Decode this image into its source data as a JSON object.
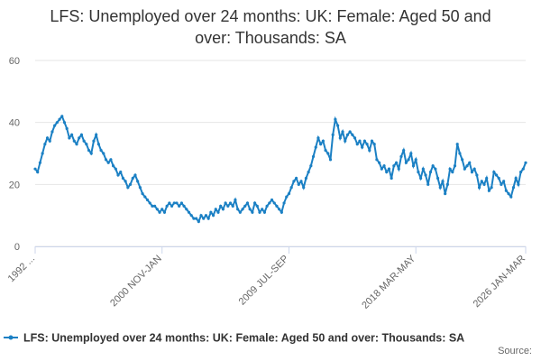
{
  "chart_data": {
    "type": "line",
    "title": "LFS: Unemployed over 24 months: UK: Female: Aged 50 and over: Thousands: SA",
    "source_label": "Source:",
    "categories": [
      "1992 ...",
      null,
      null,
      null,
      null,
      null,
      null,
      null,
      null,
      null,
      null,
      null,
      null,
      null,
      null,
      null,
      null,
      null,
      null,
      null,
      null,
      null,
      null,
      null,
      null,
      null,
      null,
      null,
      null,
      null,
      null,
      null,
      null,
      null,
      null,
      null,
      null,
      null,
      null,
      null,
      null,
      null,
      null,
      null,
      null,
      null,
      null,
      null,
      null,
      null,
      null,
      null,
      "2000 NOV-JAN",
      null,
      null,
      null,
      null,
      null,
      null,
      null,
      null,
      null,
      null,
      null,
      null,
      null,
      null,
      null,
      null,
      null,
      null,
      null,
      null,
      null,
      null,
      null,
      null,
      null,
      null,
      null,
      null,
      null,
      null,
      null,
      null,
      null,
      null,
      null,
      null,
      null,
      null,
      null,
      null,
      null,
      null,
      null,
      null,
      null,
      null,
      null,
      null,
      null,
      null,
      null,
      "2009 JUL-SEP",
      null,
      null,
      null,
      null,
      null,
      null,
      null,
      null,
      null,
      null,
      null,
      null,
      null,
      null,
      null,
      null,
      null,
      null,
      null,
      null,
      null,
      null,
      null,
      null,
      null,
      null,
      null,
      null,
      null,
      null,
      null,
      null,
      null,
      null,
      null,
      null,
      null,
      null,
      null,
      null,
      null,
      null,
      null,
      null,
      null,
      null,
      null,
      null,
      null,
      null,
      null,
      "2018 MAR-MAY",
      null,
      null,
      null,
      null,
      null,
      null,
      null,
      null,
      null,
      null,
      null,
      null,
      null,
      null,
      null,
      null,
      null,
      null,
      null,
      null,
      null,
      null,
      null,
      null,
      null,
      null,
      null,
      null,
      null,
      null,
      null,
      null,
      null,
      null,
      null,
      null,
      null,
      null,
      null,
      null,
      null,
      null,
      null,
      null,
      "2026 JAN-MAR"
    ],
    "series": [
      {
        "name": "LFS: Unemployed over 24 months: UK: Female: Aged 50 and over: Thousands: SA",
        "color": "#1b80c4",
        "values": [
          25,
          24,
          27,
          30,
          33,
          35,
          34,
          37,
          39,
          40,
          41,
          42,
          40,
          38,
          35,
          36,
          34,
          33,
          35,
          36,
          34,
          33,
          31,
          30,
          34,
          36,
          33,
          31,
          30,
          28,
          27,
          28,
          26,
          25,
          23,
          24,
          22,
          21,
          19,
          20,
          22,
          23,
          21,
          19,
          17,
          16,
          15,
          14,
          13,
          13,
          12,
          11,
          12,
          11,
          13,
          14,
          13,
          14,
          14,
          13,
          14,
          13,
          12,
          11,
          10,
          9,
          9,
          8,
          10,
          9,
          10,
          9,
          11,
          10,
          12,
          11,
          13,
          12,
          14,
          13,
          14,
          13,
          15,
          12,
          11,
          12,
          13,
          14,
          12,
          11,
          14,
          13,
          11,
          12,
          11,
          13,
          14,
          15,
          14,
          13,
          12,
          11,
          14,
          16,
          17,
          19,
          21,
          22,
          20,
          21,
          19,
          22,
          24,
          26,
          29,
          32,
          35,
          33,
          34,
          31,
          30,
          28,
          36,
          41,
          39,
          35,
          37,
          34,
          36,
          37,
          36,
          35,
          33,
          34,
          32,
          34,
          33,
          31,
          34,
          33,
          28,
          27,
          25,
          26,
          24,
          25,
          22,
          26,
          27,
          25,
          29,
          31,
          27,
          28,
          30,
          26,
          28,
          24,
          22,
          25,
          23,
          20,
          24,
          26,
          25,
          22,
          19,
          21,
          17,
          20,
          25,
          24,
          26,
          33,
          30,
          28,
          25,
          26,
          27,
          24,
          25,
          23,
          19,
          21,
          20,
          22,
          18,
          19,
          24,
          23,
          22,
          20,
          21,
          18,
          17,
          16,
          19,
          22,
          20,
          24,
          25,
          27
        ]
      }
    ],
    "ylim": [
      0,
      60
    ],
    "yticks": [
      0,
      20,
      40,
      60
    ],
    "grid": true
  }
}
